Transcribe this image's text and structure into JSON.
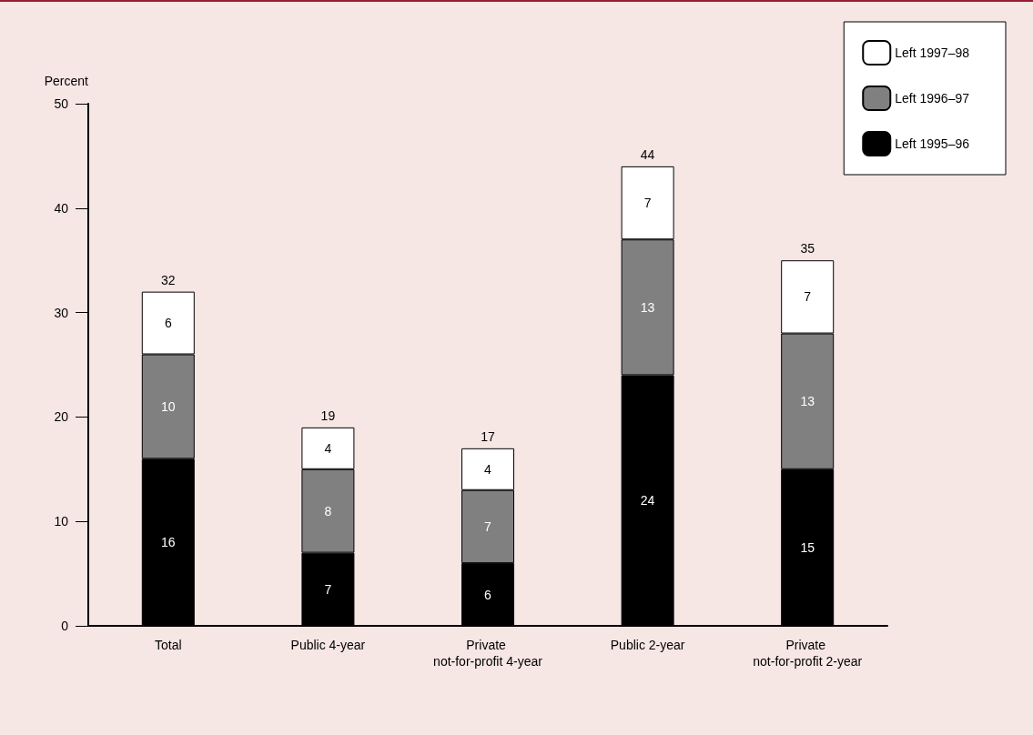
{
  "chart_data": {
    "type": "bar",
    "stacked": true,
    "ylabel": "Percent",
    "categories": [
      "Total",
      "Public 4-year",
      "Private not-for-profit 4-year",
      "Public 2-year",
      "Private not-for-profit 2-year"
    ],
    "series": [
      {
        "name": "Left 1995–96",
        "color": "#000000",
        "values": [
          16,
          7,
          6,
          24,
          15
        ]
      },
      {
        "name": "Left 1996–97",
        "color": "#808080",
        "values": [
          10,
          8,
          7,
          13,
          13
        ]
      },
      {
        "name": "Left 1997–98",
        "color": "#ffffff",
        "values": [
          6,
          4,
          4,
          7,
          7
        ]
      }
    ],
    "totals": [
      "32",
      "19",
      "17",
      "44",
      "35"
    ],
    "data_labels": true,
    "ylim": [
      0,
      50
    ],
    "yticks": [
      0,
      10,
      20,
      30,
      40,
      50
    ],
    "grid": false,
    "legend": "top right"
  }
}
